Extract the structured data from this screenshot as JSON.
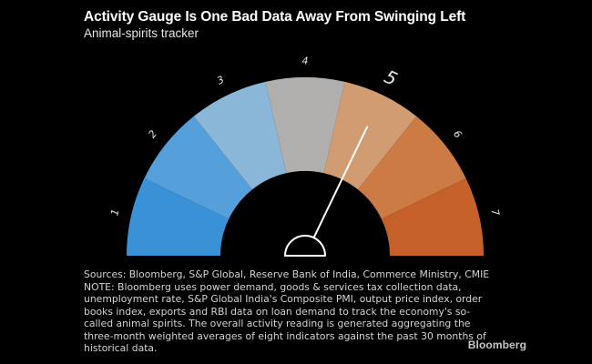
{
  "header": {
    "title": "Activity Gauge Is One Bad Data Away From Swinging Left",
    "subtitle": "Animal-spirits tracker"
  },
  "chart_data": {
    "type": "gauge",
    "title": "Activity Gauge Is One Bad Data Away From Swinging Left",
    "subtitle": "Animal-spirits tracker",
    "layout_hints": {
      "shape": "semicircle",
      "start_angle_deg": 180,
      "end_angle_deg": 0,
      "labels_position": "outside-arc, rotated radially",
      "background": "#000000"
    },
    "segments": [
      {
        "label": "1",
        "color": "#3b91d6",
        "emphasis": false
      },
      {
        "label": "2",
        "color": "#55a0da",
        "emphasis": false
      },
      {
        "label": "3",
        "color": "#8ab6d8",
        "emphasis": false
      },
      {
        "label": "4",
        "color": "#b0afad",
        "emphasis": false
      },
      {
        "label": "5",
        "color": "#d19c71",
        "emphasis": true
      },
      {
        "label": "6",
        "color": "#cc7b45",
        "emphasis": false
      },
      {
        "label": "7",
        "color": "#c6602b",
        "emphasis": false
      }
    ],
    "needle": {
      "value": 5,
      "points_to_label": "5",
      "color": "#ffffff"
    },
    "hub": {
      "stroke_color": "#ffffff",
      "fill_color": "#000000"
    }
  },
  "footer": {
    "note_lines": [
      "Sources: Bloomberg, S&P Global, Reserve Bank of India, Commerce Ministry, CMIE",
      "NOTE: Bloomberg uses power demand, goods & services tax collection data,",
      "unemployment rate, S&P Global India's Composite PMI, output price index, order",
      "books index, exports and RBI data on loan demand to track the economy's so-",
      "called animal spirits. The overall activity reading is generated aggregating the",
      "three-month weighted averages of eight indicators against the past 30 months of",
      "historical data."
    ],
    "logo": "Bloomberg"
  },
  "colors": {
    "background": "#000000",
    "title_text": "#ffffff",
    "note_text": "#d4d4d4",
    "logo_text": "#c6c6c6",
    "gauge_label_text": "#e8e8e8"
  }
}
